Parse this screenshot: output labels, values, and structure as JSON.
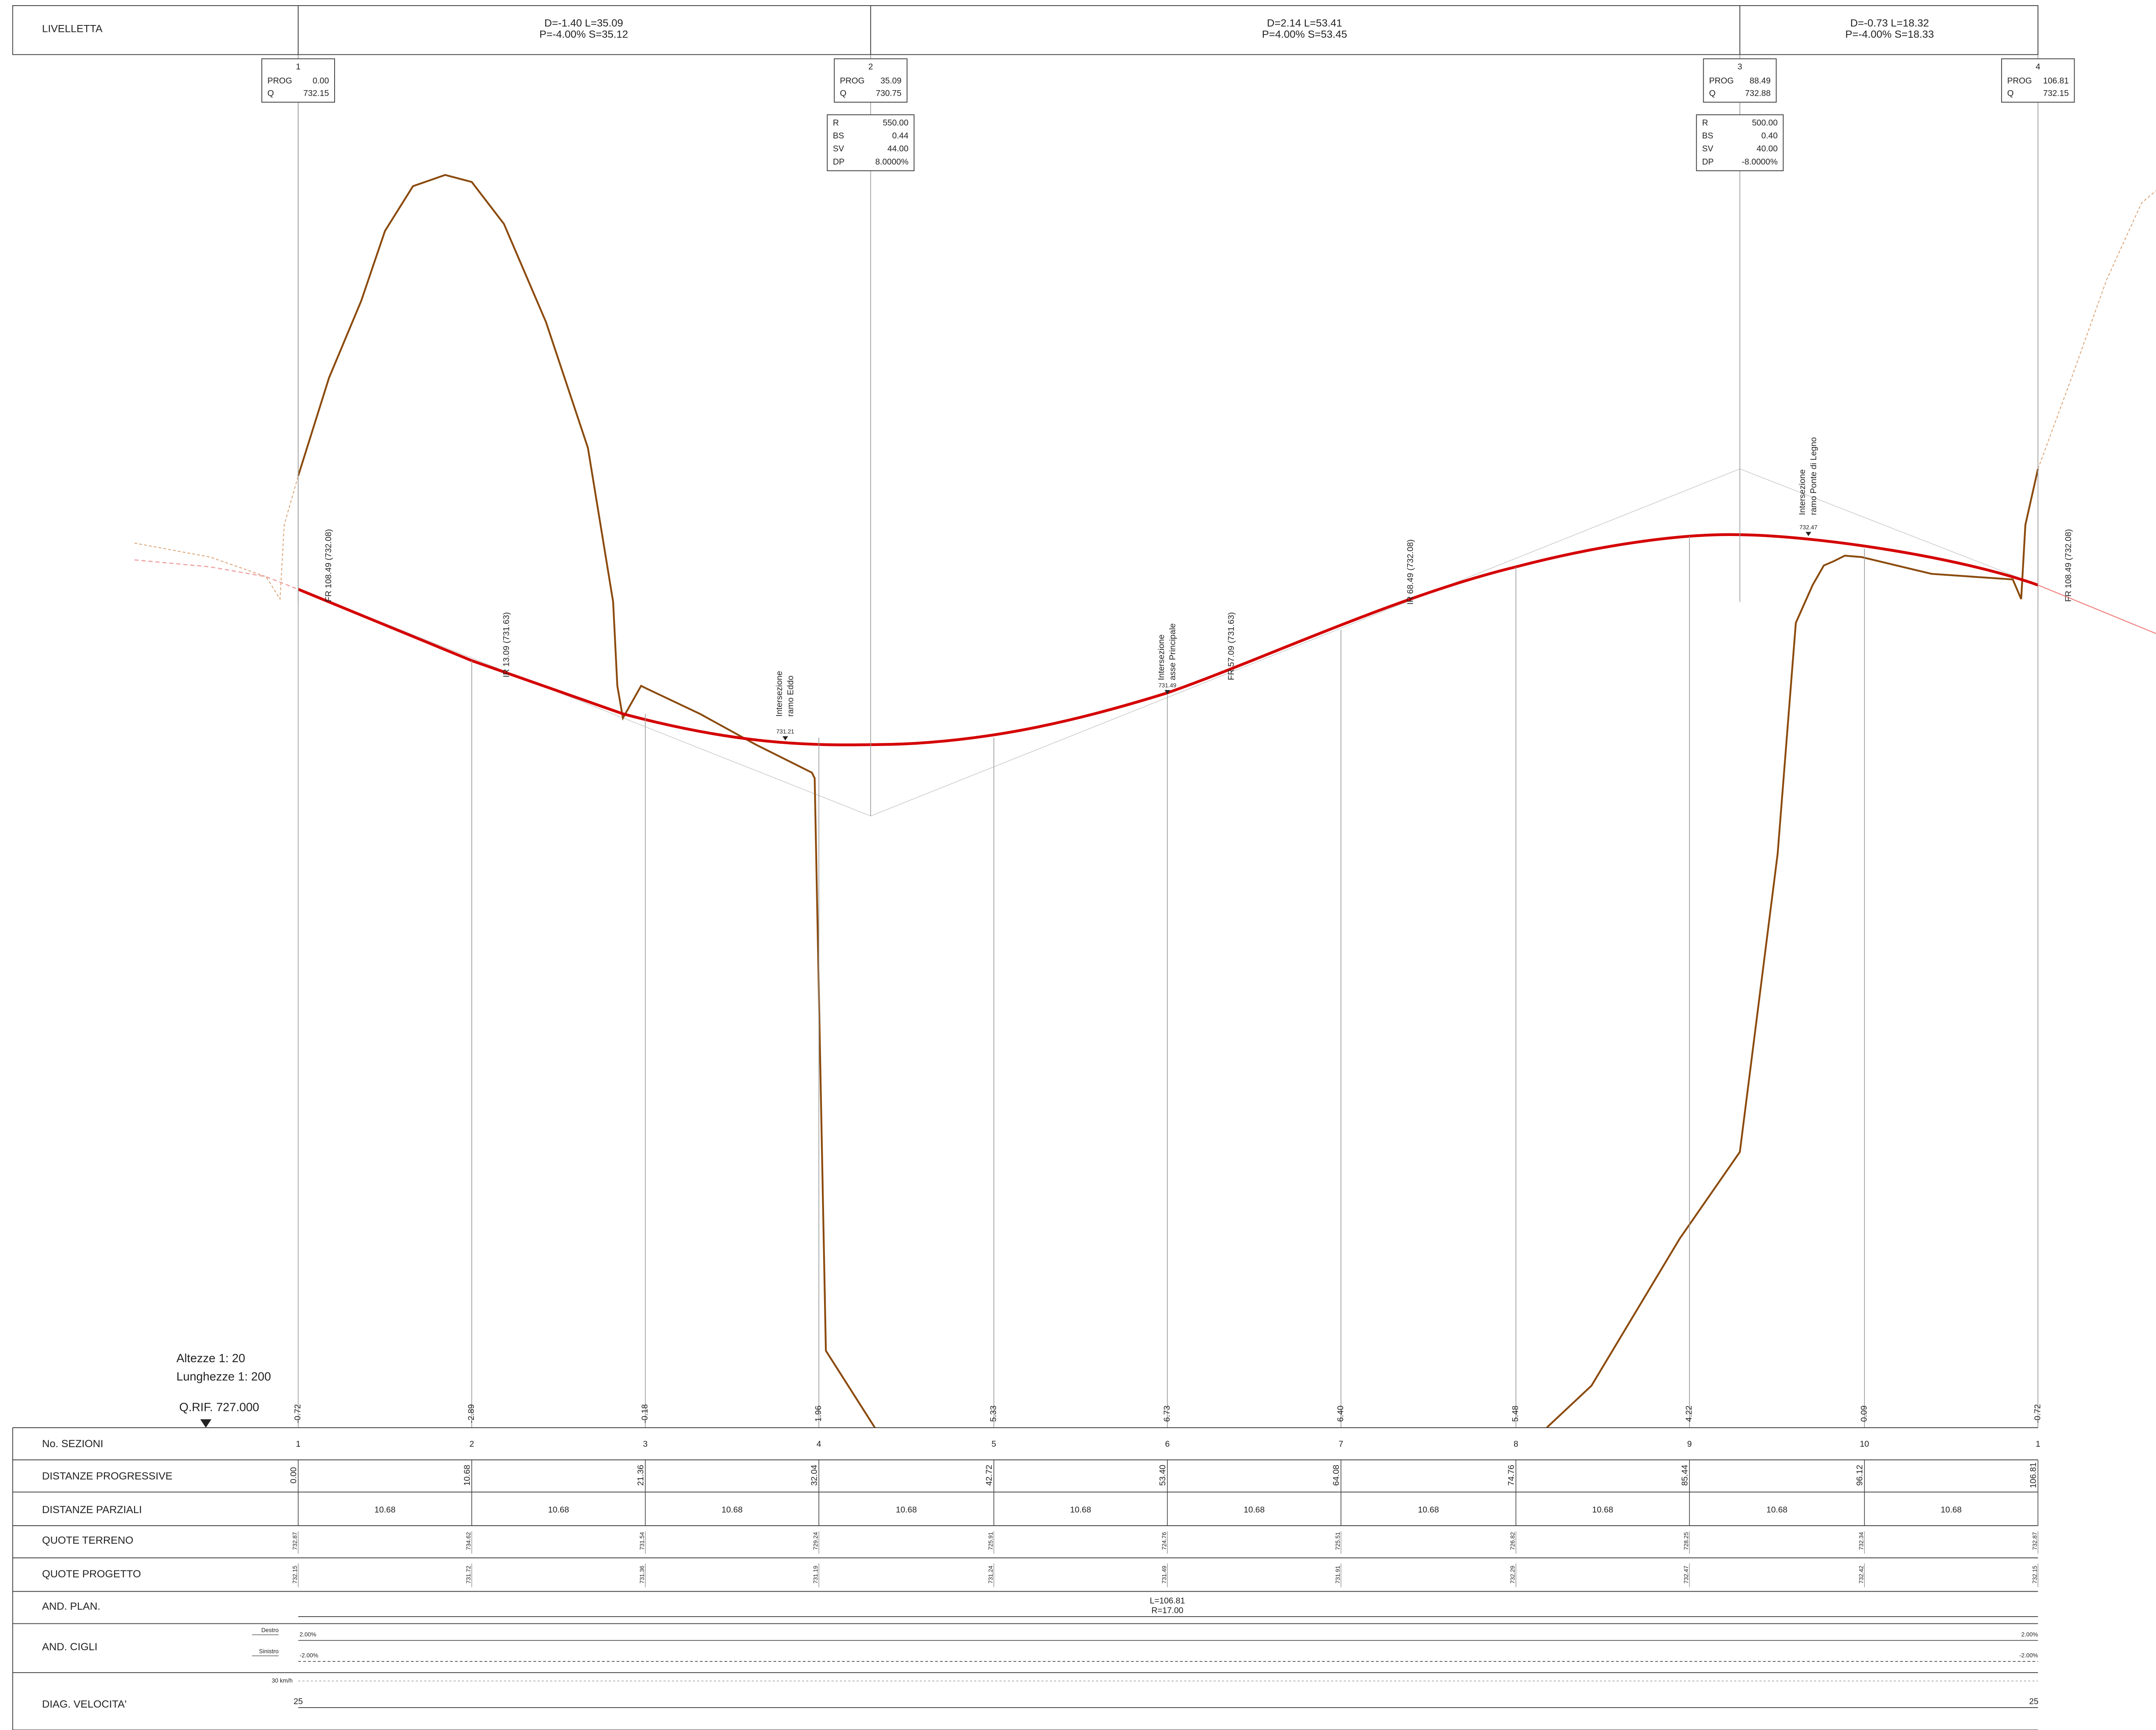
{
  "livelletta": {
    "label": "LIVELLETTA",
    "segments": [
      [
        "D=-1.40 L=35.09",
        "P=-4.00% S=35.12"
      ],
      [
        "D=2.14 L=53.41",
        "P=4.00% S=53.45"
      ],
      [
        "D=-0.73 L=18.32",
        "P=-4.00% S=18.33"
      ]
    ]
  },
  "vertices": [
    {
      "id": "1",
      "rows": [
        [
          "PROG",
          "0.00"
        ],
        [
          "Q",
          "732.15"
        ]
      ]
    },
    {
      "id": "2",
      "rows": [
        [
          "PROG",
          "35.09"
        ],
        [
          "Q",
          "730.75"
        ]
      ],
      "curve": [
        [
          "R",
          "550.00"
        ],
        [
          "BS",
          "0.44"
        ],
        [
          "SV",
          "44.00"
        ],
        [
          "DP",
          "8.0000%"
        ]
      ]
    },
    {
      "id": "3",
      "rows": [
        [
          "PROG",
          "88.49"
        ],
        [
          "Q",
          "732.88"
        ]
      ],
      "curve": [
        [
          "R",
          "500.00"
        ],
        [
          "BS",
          "0.40"
        ],
        [
          "SV",
          "40.00"
        ],
        [
          "DP",
          "-8.0000%"
        ]
      ]
    },
    {
      "id": "4",
      "rows": [
        [
          "PROG",
          "106.81"
        ],
        [
          "Q",
          "732.15"
        ]
      ]
    }
  ],
  "annotations": [
    "FR  108.49  (732.08)",
    "IR  13.09  (731.63)",
    "FR  57.09  (731.63)",
    "IR  68.49  (732.08)",
    "FR  108.49  (732.08)"
  ],
  "intersections": [
    {
      "lines": [
        "Intersezione",
        "ramo Eddo"
      ],
      "quota": "731.21"
    },
    {
      "lines": [
        "Intersezione",
        "asse Principale"
      ],
      "quota": "731.49"
    },
    {
      "lines": [
        "Intersezione",
        "ramo Ponte di Legno"
      ],
      "quota": "732.47"
    }
  ],
  "scales": [
    "Altezze 1: 20",
    "Lunghezze 1: 200"
  ],
  "q_rif": "Q.RIF. 727.000",
  "differences": [
    "-0.72",
    "-2.89",
    "-0.18",
    "1.96",
    "5.33",
    "6.73",
    "6.40",
    "5.48",
    "4.22",
    "0.09",
    "-0.72"
  ],
  "table": {
    "sezioni": {
      "label": "No. SEZIONI",
      "values": [
        "1",
        "2",
        "3",
        "4",
        "5",
        "6",
        "7",
        "8",
        "9",
        "10",
        "1"
      ]
    },
    "progressive": {
      "label": "DISTANZE PROGRESSIVE",
      "values": [
        "0.00",
        "10.68",
        "21.36",
        "32.04",
        "42.72",
        "53.40",
        "64.08",
        "74.76",
        "85.44",
        "96.12",
        "106.81"
      ]
    },
    "parziali": {
      "label": "DISTANZE PARZIALI",
      "values": [
        "10.68",
        "10.68",
        "10.68",
        "10.68",
        "10.68",
        "10.68",
        "10.68",
        "10.68",
        "10.68",
        "10.68"
      ]
    },
    "terreno": {
      "label": "QUOTE TERRENO",
      "values": [
        "732.87",
        "734.62",
        "731.54",
        "729.24",
        "725.91",
        "724.76",
        "725.51",
        "726.82",
        "728.25",
        "732.34",
        "732.87"
      ]
    },
    "progetto": {
      "label": "QUOTE PROGETTO",
      "values": [
        "732.15",
        "731.72",
        "731.36",
        "731.19",
        "731.24",
        "731.49",
        "731.91",
        "732.29",
        "732.47",
        "732.42",
        "732.15"
      ]
    },
    "and_plan": {
      "label": "AND. PLAN.",
      "lines": [
        "L=106.81",
        "R=17.00"
      ]
    },
    "and_cigli": {
      "label": "AND. CIGLI",
      "sides": [
        {
          "name": "Destro",
          "start": "2.00%",
          "end": "2.00%"
        },
        {
          "name": "Sinistro",
          "start": "-2.00%",
          "end": "-2.00%"
        }
      ]
    },
    "velocita": {
      "label": "DIAG. VELOCITA'",
      "limit": "30 km/h",
      "start": "25",
      "end": "25"
    }
  }
}
